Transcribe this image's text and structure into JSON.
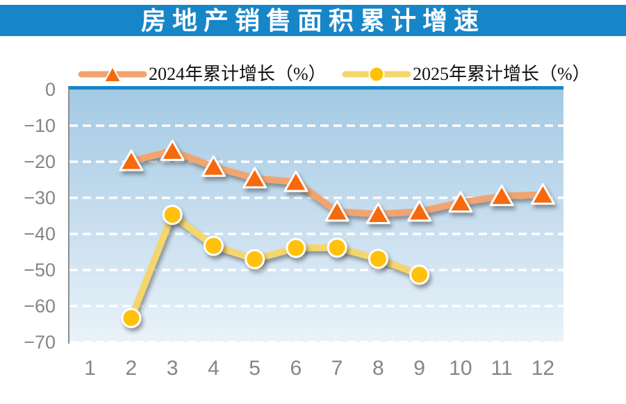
{
  "colors": {
    "title_bar": "#1786C8",
    "plot_top_border": "#1786C8",
    "axis_line": "#8C8C8C",
    "axis_label": "#858585",
    "gridline": "#FFFFFF",
    "plot_bg_top": "#A3C9E3",
    "plot_bg_mid": "#C6DDEE",
    "plot_bg_bottom": "#EAF3FA",
    "legend_text": "#111111"
  },
  "chart_data": {
    "type": "line",
    "title": "房地产销售面积累计增速",
    "xlabel": "",
    "ylabel": "",
    "categories": [
      "1",
      "2",
      "3",
      "4",
      "5",
      "6",
      "7",
      "8",
      "9",
      "10",
      "11",
      "12"
    ],
    "series": [
      {
        "name": "2024年累计增长（%）",
        "marker": "triangle",
        "line_color": "#F2A46F",
        "marker_color": "#F6690D",
        "marker_border": "#FFFFFF",
        "x": [
          2,
          3,
          4,
          5,
          6,
          7,
          8,
          9,
          10,
          11,
          12
        ],
        "values": [
          -19.8,
          -17.0,
          -21.4,
          -24.6,
          -25.6,
          -33.8,
          -34.5,
          -33.8,
          -31.3,
          -29.5,
          -29.1
        ]
      },
      {
        "name": "2025年累计增长（%）",
        "marker": "circle",
        "line_color": "#F5D66D",
        "marker_color": "#FFC107",
        "marker_border": "#FFFFFF",
        "x": [
          2,
          3,
          4,
          5,
          6,
          7,
          8,
          9
        ],
        "values": [
          -63.3,
          -34.7,
          -43.3,
          -47.0,
          -43.9,
          -43.8,
          -46.9,
          -51.3
        ]
      }
    ],
    "ylim": [
      -70,
      0
    ],
    "yticks": [
      "0",
      "−10",
      "−20",
      "−30",
      "−40",
      "−50",
      "−60",
      "−70"
    ],
    "grid": "horizontal-white-dashed",
    "legend_position": "top"
  }
}
